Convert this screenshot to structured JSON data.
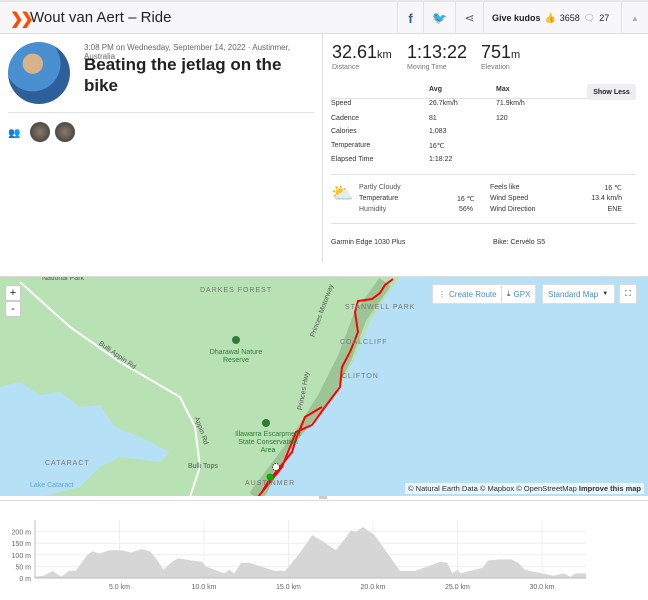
{
  "header": {
    "title": "Wout van Aert – Ride",
    "give_kudos": "Give kudos",
    "kudos_count": "3658",
    "comments_count": "27"
  },
  "activity": {
    "meta": "3:08 PM on Wednesday, September 14, 2022 · Austinmer, Australia",
    "name": "Beating the jetlag on the bike"
  },
  "summary": [
    {
      "value": "32.61",
      "unit": "km",
      "label": "Distance"
    },
    {
      "value": "1:13:22",
      "unit": "",
      "label": "Moving Time"
    },
    {
      "value": "751",
      "unit": "m",
      "label": "Elevation"
    }
  ],
  "stats": {
    "avg_header": "Avg",
    "max_header": "Max",
    "show_less": "Show Less",
    "rows": [
      {
        "label": "Speed",
        "avg": "26.7km/h",
        "max": "71.9km/h"
      },
      {
        "label": "Cadence",
        "avg": "81",
        "max": "120"
      },
      {
        "label": "Calories",
        "avg": "1,083",
        "max": ""
      },
      {
        "label": "Temperature",
        "avg": "16℃",
        "max": ""
      },
      {
        "label": "Elapsed Time",
        "avg": "1:18:22",
        "max": ""
      }
    ]
  },
  "weather": {
    "condition": "Partly Cloudy",
    "left": [
      {
        "label": "Temperature",
        "value": "16 ℃"
      },
      {
        "label": "Humidity",
        "value": "56%"
      }
    ],
    "right": [
      {
        "label": "Feels like",
        "value": "16 ℃"
      },
      {
        "label": "Wind Speed",
        "value": "13.4 km/h"
      },
      {
        "label": "Wind Direction",
        "value": "ENE"
      }
    ]
  },
  "device": "Garmin Edge 1030 Plus",
  "bike": "Bike: Cervélo S5",
  "map": {
    "create_route": "Create Route",
    "gpx": "GPX",
    "map_type": "Standard Map",
    "zoom_in": "+",
    "zoom_out": "-",
    "labels": [
      "National Park",
      "DARKES FOREST",
      "Dharawal Nature Reserve",
      "Bulli Appin Rd",
      "STANWELL PARK",
      "COALCLIFF",
      "CLIFTON",
      "Illawarra Escarpment State Conservation Area",
      "Bulli Tops",
      "Appin Rd",
      "CATARACT",
      "Lake Cataract",
      "AUSTINMER",
      "Princes Hwy",
      "Princes Motorway"
    ],
    "attribution": "© Natural Earth Data © Mapbox © OpenStreetMap",
    "improve": "Improve this map",
    "route_color": "#ff0000",
    "water_color": "#b5e0f5"
  },
  "chart_data": {
    "type": "area",
    "xlabel": "",
    "ylabel": "",
    "xlim": [
      0,
      32.61
    ],
    "ylim": [
      0,
      250
    ],
    "grid": true,
    "x_ticks": [
      "5.0 km",
      "10.0 km",
      "15.0 km",
      "20.0 km",
      "25.0 km",
      "30.0 km"
    ],
    "y_ticks": [
      "0 m",
      "50 m",
      "100 m",
      "150 m",
      "200 m"
    ],
    "points": [
      [
        0,
        5
      ],
      [
        0.5,
        10
      ],
      [
        1.06,
        30
      ],
      [
        1.55,
        5
      ],
      [
        2.0,
        30
      ],
      [
        2.4,
        30
      ],
      [
        3.1,
        100
      ],
      [
        3.4,
        115
      ],
      [
        3.8,
        105
      ],
      [
        4.4,
        120
      ],
      [
        5.1,
        120
      ],
      [
        5.7,
        110
      ],
      [
        6.3,
        125
      ],
      [
        6.8,
        115
      ],
      [
        7.2,
        80
      ],
      [
        7.6,
        35
      ],
      [
        8.1,
        70
      ],
      [
        8.5,
        85
      ],
      [
        9.3,
        75
      ],
      [
        9.9,
        70
      ],
      [
        10.1,
        50
      ],
      [
        11.2,
        20
      ],
      [
        11.5,
        35
      ],
      [
        11.8,
        20
      ],
      [
        12.2,
        65
      ],
      [
        12.7,
        65
      ],
      [
        14.2,
        30
      ],
      [
        14.8,
        30
      ],
      [
        15.7,
        110
      ],
      [
        16.4,
        185
      ],
      [
        17.0,
        160
      ],
      [
        17.8,
        120
      ],
      [
        18.3,
        165
      ],
      [
        18.7,
        205
      ],
      [
        19.0,
        200
      ],
      [
        19.4,
        220
      ],
      [
        20.1,
        185
      ],
      [
        21.6,
        30
      ],
      [
        22.5,
        30
      ],
      [
        24.0,
        70
      ],
      [
        24.4,
        65
      ],
      [
        24.7,
        20
      ],
      [
        25.0,
        35
      ],
      [
        25.2,
        20
      ],
      [
        26.5,
        45
      ],
      [
        26.8,
        75
      ],
      [
        27.5,
        80
      ],
      [
        28.2,
        80
      ],
      [
        28.6,
        65
      ],
      [
        29.0,
        35
      ],
      [
        29.7,
        25
      ],
      [
        30.7,
        10
      ],
      [
        31.3,
        20
      ],
      [
        31.7,
        5
      ],
      [
        32.0,
        20
      ],
      [
        32.61,
        20
      ]
    ]
  }
}
